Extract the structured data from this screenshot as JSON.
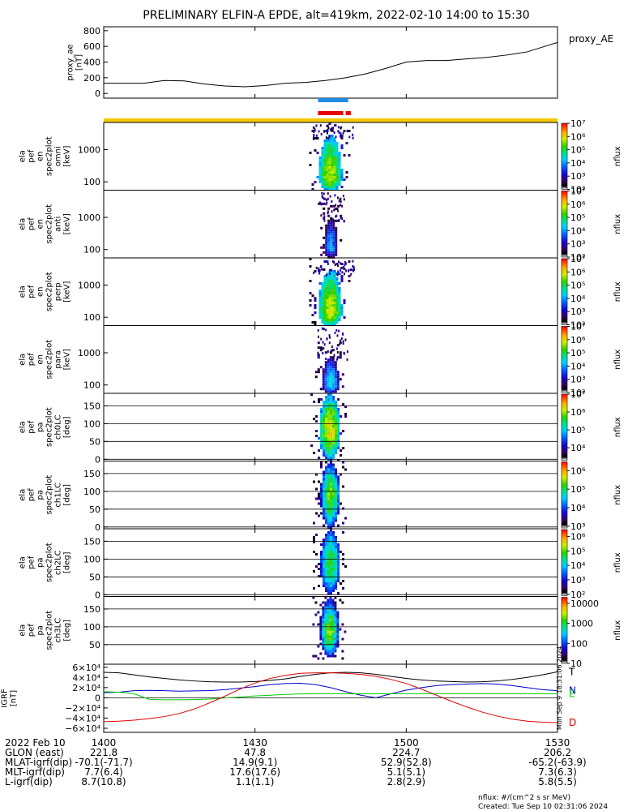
{
  "title": "PRELIMINARY ELFIN-A EPDE, alt=419km, 2022-02-10 14:00 to 15:30",
  "footer": {
    "units": "nflux: #/(cm^2 s sr MeV)",
    "created": "Created: Tue Sep 10 02:31:06 2024",
    "side_stamp": "Mon Sep 9 18:31:06 2024"
  },
  "time_axis": {
    "range_minutes": [
      0,
      90
    ],
    "ticks": [
      {
        "t": 0,
        "label": "1400"
      },
      {
        "t": 30,
        "label": "1430"
      },
      {
        "t": 60,
        "label": "1500"
      },
      {
        "t": 90,
        "label": "1530"
      }
    ]
  },
  "orbit_rows": [
    {
      "label": "2022 Feb 10",
      "values": [
        "",
        "",
        "",
        ""
      ]
    },
    {
      "label": "GLON (east)",
      "values": [
        "221.8",
        "47.8",
        "224.7",
        "206.2"
      ]
    },
    {
      "label": "MLAT-igrf(dip)",
      "values": [
        "-70.1(-71.7)",
        "14.9(9.1)",
        "52.9(52.8)",
        "-65.2(-63.9)"
      ]
    },
    {
      "label": "MLT-igrf(dip)",
      "values": [
        "7.7(6.4)",
        "17.6(17.6)",
        "5.1(5.1)",
        "7.3(6.3)"
      ]
    },
    {
      "label": "L-igrf(dip)",
      "values": [
        "8.7(10.8)",
        "1.1(1.1)",
        "2.8(2.9)",
        "5.8(5.5)"
      ]
    }
  ],
  "chart_data": [
    {
      "type": "line",
      "panel": "proxy_ae",
      "ylabel_lines": [
        "proxy_ae",
        "[nT]"
      ],
      "legend": "proxy_AE",
      "ylim": [
        -60,
        850
      ],
      "yticks": [
        {
          "v": 0,
          "label": "0"
        },
        {
          "v": 200,
          "label": "200"
        },
        {
          "v": 400,
          "label": "400"
        },
        {
          "v": 600,
          "label": "600"
        },
        {
          "v": 800,
          "label": "800"
        }
      ],
      "x": [
        0,
        4,
        8,
        12,
        16,
        20,
        24,
        28,
        32,
        36,
        40,
        44,
        48,
        52,
        56,
        60,
        64,
        68,
        72,
        76,
        80,
        84,
        88,
        90
      ],
      "values": [
        130,
        130,
        130,
        165,
        160,
        120,
        95,
        85,
        100,
        130,
        140,
        165,
        200,
        250,
        320,
        400,
        420,
        420,
        440,
        460,
        490,
        530,
        610,
        650
      ]
    },
    {
      "type": "bar",
      "panel": "status_bars",
      "segments": [
        {
          "color": "#1e8be6",
          "t0": 42.5,
          "t1": 48.5
        },
        {
          "color": "#e60000",
          "t0": 42.5,
          "t1": 47.5
        },
        {
          "color": "#e60000",
          "t0": 48.0,
          "t1": 49.0
        },
        {
          "color": "#f5c800",
          "t0": 0,
          "t1": 90
        }
      ]
    },
    {
      "type": "heatmap",
      "panel": "spec_en_omni",
      "ylabel_lines": [
        "ela",
        "pef",
        "en",
        "spec2plot",
        "omni",
        "[keV]"
      ],
      "yscale": "log",
      "ylim": [
        55,
        7000
      ],
      "yticks": [
        {
          "v": 100,
          "label": "100"
        },
        {
          "v": 1000,
          "label": "1000"
        }
      ],
      "zlabel": "nflux",
      "zscale": "log",
      "zlim": [
        100,
        10000000
      ],
      "zticks": [
        {
          "v": 100,
          "label": "10²"
        },
        {
          "v": 1000,
          "label": "10³"
        },
        {
          "v": 10000,
          "label": "10⁴"
        },
        {
          "v": 100000,
          "label": "10⁵"
        },
        {
          "v": 1000000,
          "label": "10⁶"
        },
        {
          "v": 10000000,
          "label": "10⁷"
        }
      ],
      "blob": {
        "t_center": 44.7,
        "t_width": 2.2,
        "y_lo": 60,
        "y_hi": 2500,
        "peak_log": 5.6,
        "peak_y": 150
      }
    },
    {
      "type": "heatmap",
      "panel": "spec_en_anti",
      "ylabel_lines": [
        "ela",
        "pef",
        "en",
        "spec2plot",
        "anti",
        "[keV]"
      ],
      "yscale": "log",
      "ylim": [
        55,
        7000
      ],
      "yticks": [
        {
          "v": 100,
          "label": "100"
        },
        {
          "v": 1000,
          "label": "1000"
        }
      ],
      "zlabel": "nflux",
      "zscale": "log",
      "zlim": [
        100,
        10000000
      ],
      "zticks": [
        {
          "v": 100,
          "label": "10²"
        },
        {
          "v": 1000,
          "label": "10³"
        },
        {
          "v": 10000,
          "label": "10⁴"
        },
        {
          "v": 100000,
          "label": "10⁵"
        },
        {
          "v": 1000000,
          "label": "10⁶"
        },
        {
          "v": 10000000,
          "label": "10⁷"
        }
      ],
      "blob": {
        "t_center": 44.8,
        "t_width": 1.3,
        "y_lo": 60,
        "y_hi": 900,
        "peak_log": 3.8,
        "peak_y": 120
      }
    },
    {
      "type": "heatmap",
      "panel": "spec_en_perp",
      "ylabel_lines": [
        "ela",
        "pef",
        "en",
        "spec2plot",
        "perp",
        "[keV]"
      ],
      "yscale": "log",
      "ylim": [
        55,
        7000
      ],
      "yticks": [
        {
          "v": 100,
          "label": "100"
        },
        {
          "v": 1000,
          "label": "1000"
        }
      ],
      "zlabel": "nflux",
      "zscale": "log",
      "zlim": [
        100,
        10000000
      ],
      "zticks": [
        {
          "v": 100,
          "label": "10²"
        },
        {
          "v": 1000,
          "label": "10³"
        },
        {
          "v": 10000,
          "label": "10⁴"
        },
        {
          "v": 100000,
          "label": "10⁵"
        },
        {
          "v": 1000000,
          "label": "10⁶"
        },
        {
          "v": 10000000,
          "label": "10⁷"
        }
      ],
      "blob": {
        "t_center": 44.7,
        "t_width": 2.2,
        "y_lo": 60,
        "y_hi": 2500,
        "peak_log": 5.7,
        "peak_y": 150
      }
    },
    {
      "type": "heatmap",
      "panel": "spec_en_para",
      "ylabel_lines": [
        "ela",
        "pef",
        "en",
        "spec2plot",
        "para",
        "[keV]"
      ],
      "yscale": "log",
      "ylim": [
        55,
        7000
      ],
      "yticks": [
        {
          "v": 100,
          "label": "100"
        },
        {
          "v": 1000,
          "label": "1000"
        }
      ],
      "zlabel": "nflux",
      "zscale": "log",
      "zlim": [
        100,
        10000000
      ],
      "zticks": [
        {
          "v": 100,
          "label": "10²"
        },
        {
          "v": 1000,
          "label": "10³"
        },
        {
          "v": 10000,
          "label": "10⁴"
        },
        {
          "v": 100000,
          "label": "10⁵"
        },
        {
          "v": 1000000,
          "label": "10⁶"
        },
        {
          "v": 10000000,
          "label": "10⁷"
        }
      ],
      "blob": {
        "t_center": 44.8,
        "t_width": 1.6,
        "y_lo": 60,
        "y_hi": 700,
        "peak_log": 4.2,
        "peak_y": 110
      }
    },
    {
      "type": "heatmap",
      "panel": "spec_pa_ch0LC",
      "ylabel_lines": [
        "ela",
        "pef",
        "pa",
        "spec2plot",
        "ch0LC",
        "[deg]"
      ],
      "yscale": "linear",
      "ylim": [
        -5,
        185
      ],
      "yticks": [
        {
          "v": 0,
          "label": "0"
        },
        {
          "v": 50,
          "label": "50"
        },
        {
          "v": 100,
          "label": "100"
        },
        {
          "v": 150,
          "label": "150"
        }
      ],
      "zlabel": "nflux",
      "zscale": "log",
      "zlim": [
        2000,
        10000000
      ],
      "zticks": [
        {
          "v": 10000,
          "label": "10⁴"
        },
        {
          "v": 100000,
          "label": "10⁵"
        },
        {
          "v": 1000000,
          "label": "10⁶"
        },
        {
          "v": 10000000,
          "label": "10⁷"
        }
      ],
      "blob": {
        "t_center": 44.6,
        "t_width": 2.0,
        "y_lo": 5,
        "y_hi": 180,
        "peak_log": 6.2,
        "peak_y": 90
      }
    },
    {
      "type": "heatmap",
      "panel": "spec_pa_ch1LC",
      "ylabel_lines": [
        "ela",
        "pef",
        "pa",
        "spec2plot",
        "ch1LC",
        "[deg]"
      ],
      "yscale": "linear",
      "ylim": [
        -5,
        185
      ],
      "yticks": [
        {
          "v": 0,
          "label": "0"
        },
        {
          "v": 50,
          "label": "50"
        },
        {
          "v": 100,
          "label": "100"
        },
        {
          "v": 150,
          "label": "150"
        }
      ],
      "zlabel": "nflux",
      "zscale": "log",
      "zlim": [
        800,
        3000000
      ],
      "zticks": [
        {
          "v": 1000,
          "label": "10³"
        },
        {
          "v": 10000,
          "label": "10⁴"
        },
        {
          "v": 100000,
          "label": "10⁵"
        },
        {
          "v": 1000000,
          "label": "10⁶"
        }
      ],
      "blob": {
        "t_center": 44.7,
        "t_width": 1.8,
        "y_lo": 5,
        "y_hi": 180,
        "peak_log": 5.3,
        "peak_y": 90
      }
    },
    {
      "type": "heatmap",
      "panel": "spec_pa_ch2LC",
      "ylabel_lines": [
        "ela",
        "pef",
        "pa",
        "spec2plot",
        "ch2LC",
        "[deg]"
      ],
      "yscale": "linear",
      "ylim": [
        -5,
        185
      ],
      "yticks": [
        {
          "v": 0,
          "label": "0"
        },
        {
          "v": 50,
          "label": "50"
        },
        {
          "v": 100,
          "label": "100"
        },
        {
          "v": 150,
          "label": "150"
        }
      ],
      "zlabel": "nflux",
      "zscale": "log",
      "zlim": [
        80,
        3000000
      ],
      "zticks": [
        {
          "v": 100,
          "label": "10²"
        },
        {
          "v": 1000,
          "label": "10³"
        },
        {
          "v": 10000,
          "label": "10⁴"
        },
        {
          "v": 100000,
          "label": "10⁵"
        },
        {
          "v": 1000000,
          "label": "10⁶"
        }
      ],
      "blob": {
        "t_center": 44.7,
        "t_width": 1.8,
        "y_lo": 10,
        "y_hi": 180,
        "peak_log": 4.6,
        "peak_y": 90
      }
    },
    {
      "type": "heatmap",
      "panel": "spec_pa_ch3LC",
      "ylabel_lines": [
        "ela",
        "pef",
        "pa",
        "spec2plot",
        "ch3LC",
        "[deg]"
      ],
      "yscale": "linear",
      "ylim": [
        -5,
        185
      ],
      "yticks": [
        {
          "v": 50,
          "label": "50"
        },
        {
          "v": 100,
          "label": "100"
        },
        {
          "v": 150,
          "label": "150"
        }
      ],
      "zlabel": "nflux",
      "zscale": "log",
      "zlim": [
        10,
        20000
      ],
      "zticks": [
        {
          "v": 10,
          "label": "10"
        },
        {
          "v": 100,
          "label": "100"
        },
        {
          "v": 1000,
          "label": "1000"
        },
        {
          "v": 10000,
          "label": "10000"
        }
      ],
      "blob": {
        "t_center": 44.6,
        "t_width": 1.8,
        "y_lo": 20,
        "y_hi": 180,
        "peak_log": 3.2,
        "peak_y": 90
      }
    },
    {
      "type": "line",
      "panel": "igrf",
      "ylabel_lines": [
        "IGRF",
        "[nT]"
      ],
      "ylim": [
        -68000,
        66000
      ],
      "yticks": [
        {
          "v": -60000,
          "label": "−6×10⁴"
        },
        {
          "v": -40000,
          "label": "−4×10⁴"
        },
        {
          "v": -20000,
          "label": "−2×10⁴"
        },
        {
          "v": 0,
          "label": "0"
        },
        {
          "v": 20000,
          "label": "2×10⁴"
        },
        {
          "v": 40000,
          "label": "4×10⁴"
        },
        {
          "v": 60000,
          "label": "6×10⁴"
        }
      ],
      "x": [
        0,
        3,
        6,
        9,
        12,
        15,
        18,
        21,
        24,
        27,
        30,
        33,
        36,
        39,
        42,
        45,
        48,
        51,
        54,
        57,
        60,
        63,
        66,
        69,
        72,
        75,
        78,
        81,
        84,
        87,
        90
      ],
      "series": [
        {
          "name": "T",
          "color": "#000000",
          "values": [
            50000,
            49000,
            45000,
            41000,
            38000,
            35000,
            33000,
            31500,
            31000,
            31000,
            32000,
            34000,
            37000,
            42000,
            46000,
            49000,
            50000,
            49000,
            46000,
            42000,
            38000,
            35000,
            33000,
            32000,
            31000,
            31500,
            33000,
            36000,
            40000,
            45000,
            51000
          ]
        },
        {
          "name": "N",
          "color": "#0000cc",
          "values": [
            10000,
            11000,
            14000,
            14500,
            14000,
            13000,
            13500,
            14000,
            16000,
            19000,
            22000,
            26000,
            28000,
            28500,
            26000,
            20000,
            12000,
            5000,
            0,
            8000,
            15000,
            20000,
            24000,
            26000,
            27000,
            28000,
            27000,
            24000,
            20000,
            16000,
            14000
          ]
        },
        {
          "name": "E",
          "color": "#00cc00",
          "values": [
            12000,
            11000,
            8000,
            -3000,
            -4000,
            -4000,
            -3500,
            -2500,
            -500,
            1500,
            3500,
            5000,
            6500,
            7500,
            8000,
            8000,
            8000,
            7800,
            7800,
            8000,
            8000,
            8000,
            8000,
            8000,
            8000,
            8000,
            8000,
            8000,
            8000,
            8000,
            8000
          ]
        },
        {
          "name": "D",
          "color": "#dd0000",
          "values": [
            -47000,
            -46000,
            -44000,
            -41000,
            -37000,
            -31000,
            -22000,
            -10000,
            3000,
            17000,
            29000,
            38000,
            44000,
            48000,
            49000,
            49000,
            48000,
            46000,
            42000,
            36000,
            28000,
            17000,
            5000,
            -7000,
            -18000,
            -28000,
            -36000,
            -42000,
            -46000,
            -48000,
            -49000
          ]
        }
      ]
    }
  ]
}
